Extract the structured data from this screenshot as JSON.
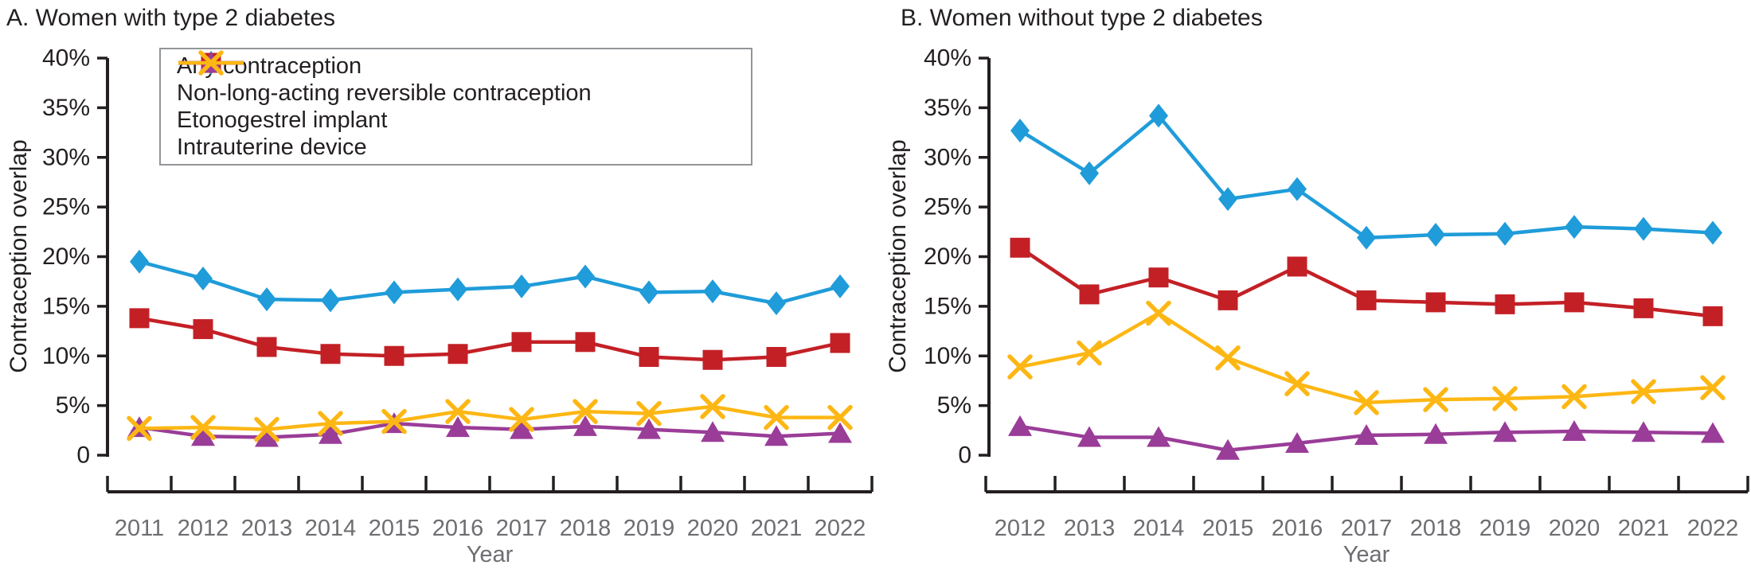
{
  "figure": {
    "panel_a": {
      "title": "A. Women with type 2 diabetes",
      "ylabel": "Contraception overlap",
      "xlabel": "Year"
    },
    "panel_b": {
      "title": "B. Women without type 2 diabetes",
      "ylabel": "Contraception overlap",
      "xlabel": "Year"
    }
  },
  "colors": {
    "any_contraception": "#1f9cd9",
    "non_larc": "#c32026",
    "etonogestrel_implant": "#9a3d98",
    "intrauterine_device": "#fdb714",
    "axis": "#231f20",
    "muted_text": "#6d6e71",
    "legend_border": "#939598",
    "background": "#ffffff"
  },
  "legend": {
    "position": "top-left-of-panel-a"
  },
  "chart_data": [
    {
      "type": "line",
      "title": "A. Women with type 2 diabetes",
      "xlabel": "Year",
      "ylabel": "Contraception overlap",
      "ylim": [
        0,
        40
      ],
      "ytick_step": 5,
      "ytick_labels": [
        "0",
        "5%",
        "10%",
        "15%",
        "20%",
        "25%",
        "30%",
        "35%",
        "40%"
      ],
      "grid": false,
      "legend_position": "top-left",
      "categories": [
        "2011",
        "2012",
        "2013",
        "2014",
        "2015",
        "2016",
        "2017",
        "2018",
        "2019",
        "2020",
        "2021",
        "2022"
      ],
      "series": [
        {
          "name": "Any contraception",
          "marker": "diamond",
          "color": "#1f9cd9",
          "values": [
            19.5,
            17.8,
            15.7,
            15.6,
            16.4,
            16.7,
            17.0,
            18.0,
            16.4,
            16.5,
            15.3,
            17.0
          ]
        },
        {
          "name": "Non-long-acting reversible contraception",
          "marker": "square",
          "color": "#c32026",
          "values": [
            13.8,
            12.7,
            10.9,
            10.2,
            10.0,
            10.2,
            11.4,
            11.4,
            9.9,
            9.6,
            9.9,
            11.3
          ]
        },
        {
          "name": "Etonogestrel implant",
          "marker": "triangle",
          "color": "#9a3d98",
          "values": [
            2.8,
            1.9,
            1.8,
            2.1,
            3.2,
            2.8,
            2.6,
            2.9,
            2.6,
            2.3,
            1.9,
            2.2
          ]
        },
        {
          "name": "Intrauterine device",
          "marker": "x",
          "color": "#fdb714",
          "values": [
            2.7,
            2.8,
            2.6,
            3.2,
            3.4,
            4.4,
            3.6,
            4.4,
            4.2,
            4.9,
            3.8,
            3.8
          ]
        }
      ]
    },
    {
      "type": "line",
      "title": "B. Women without type 2 diabetes",
      "xlabel": "Year",
      "ylabel": "Contraception overlap",
      "ylim": [
        0,
        40
      ],
      "ytick_step": 5,
      "ytick_labels": [
        "0",
        "5%",
        "10%",
        "15%",
        "20%",
        "25%",
        "30%",
        "35%",
        "40%"
      ],
      "grid": false,
      "legend_position": "none",
      "categories": [
        "2012",
        "2013",
        "2014",
        "2015",
        "2016",
        "2017",
        "2018",
        "2019",
        "2020",
        "2021",
        "2022"
      ],
      "series": [
        {
          "name": "Any contraception",
          "marker": "diamond",
          "color": "#1f9cd9",
          "values": [
            32.7,
            28.4,
            34.2,
            25.8,
            26.8,
            21.9,
            22.2,
            22.3,
            23.0,
            22.8,
            22.4
          ]
        },
        {
          "name": "Non-long-acting reversible contraception",
          "marker": "square",
          "color": "#c32026",
          "values": [
            20.9,
            16.2,
            17.9,
            15.6,
            19.0,
            15.6,
            15.4,
            15.2,
            15.4,
            14.8,
            14.0
          ]
        },
        {
          "name": "Etonogestrel implant",
          "marker": "triangle",
          "color": "#9a3d98",
          "values": [
            2.9,
            1.8,
            1.8,
            0.5,
            1.2,
            2.0,
            2.1,
            2.3,
            2.4,
            2.3,
            2.2
          ]
        },
        {
          "name": "Intrauterine device",
          "marker": "x",
          "color": "#fdb714",
          "values": [
            8.9,
            10.3,
            14.3,
            9.8,
            7.2,
            5.3,
            5.6,
            5.7,
            5.9,
            6.4,
            6.8
          ]
        }
      ]
    }
  ]
}
